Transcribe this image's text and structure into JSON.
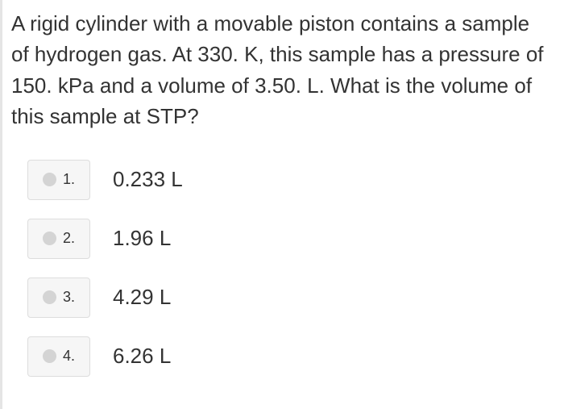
{
  "question": {
    "text": "A rigid cylinder with a movable piston contains a sample of hydrogen gas.  At 330. K, this sample has a pressure of 150. kPa and a volume of 3.50. L. What is the volume of this sample at STP?",
    "text_color": "#333333",
    "font_size": 26
  },
  "options": [
    {
      "number": "1.",
      "label": "0.233 L"
    },
    {
      "number": "2.",
      "label": "1.96 L"
    },
    {
      "number": "3.",
      "label": "4.29 L"
    },
    {
      "number": "4.",
      "label": "6.26 L"
    }
  ],
  "styling": {
    "body_width": 700,
    "body_height": 507,
    "background_color": "#ffffff",
    "left_border_color": "#e5e5e5",
    "button_background": "#f6f6f6",
    "button_border": "#dddddd",
    "radio_dot_color": "#d4d4d4",
    "option_font_size": 26,
    "option_number_font_size": 18
  }
}
